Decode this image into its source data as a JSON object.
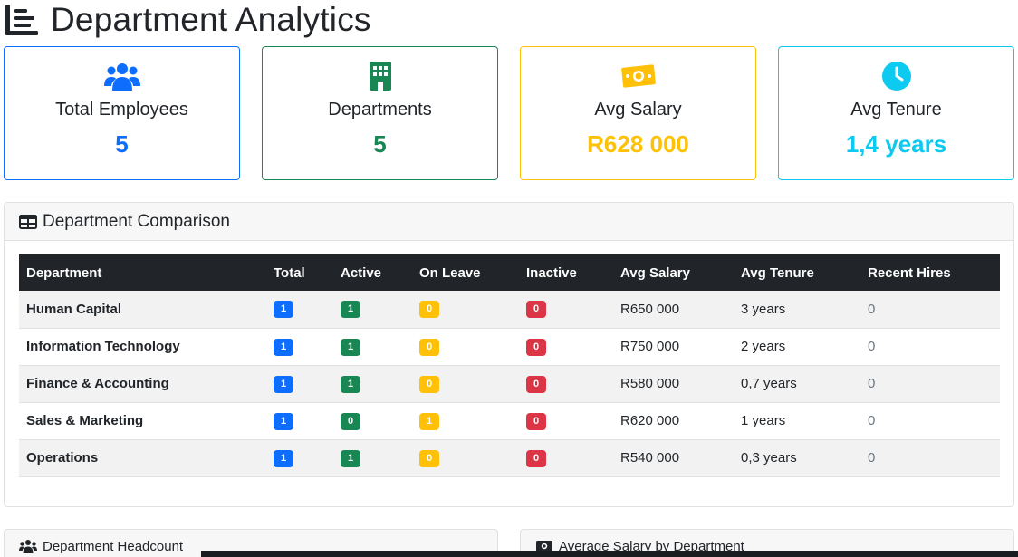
{
  "page": {
    "title": "Department Analytics"
  },
  "summary_cards": [
    {
      "icon": "users-icon",
      "label": "Total Employees",
      "value": "5",
      "color": "#0d6efd"
    },
    {
      "icon": "building-icon",
      "label": "Departments",
      "value": "5",
      "color": "#198754"
    },
    {
      "icon": "money-bill-icon",
      "label": "Avg Salary",
      "value": "R628 000",
      "color": "#ffc107"
    },
    {
      "icon": "clock-icon",
      "label": "Avg Tenure",
      "value": "1,4 years",
      "color": "#0dcaf0"
    }
  ],
  "comparison": {
    "title": "Department Comparison",
    "icon": "table-icon",
    "columns": [
      "Department",
      "Total",
      "Active",
      "On Leave",
      "Inactive",
      "Avg Salary",
      "Avg Tenure",
      "Recent Hires"
    ],
    "rows": [
      {
        "department": "Human Capital",
        "total": "1",
        "active": "1",
        "on_leave": "0",
        "inactive": "0",
        "avg_salary": "R650 000",
        "avg_tenure": "3 years",
        "recent_hires": "0"
      },
      {
        "department": "Information Technology",
        "total": "1",
        "active": "1",
        "on_leave": "0",
        "inactive": "0",
        "avg_salary": "R750 000",
        "avg_tenure": "2 years",
        "recent_hires": "0"
      },
      {
        "department": "Finance & Accounting",
        "total": "1",
        "active": "1",
        "on_leave": "0",
        "inactive": "0",
        "avg_salary": "R580 000",
        "avg_tenure": "0,7 years",
        "recent_hires": "0"
      },
      {
        "department": "Sales & Marketing",
        "total": "1",
        "active": "0",
        "on_leave": "1",
        "inactive": "0",
        "avg_salary": "R620 000",
        "avg_tenure": "1 years",
        "recent_hires": "0"
      },
      {
        "department": "Operations",
        "total": "1",
        "active": "1",
        "on_leave": "0",
        "inactive": "0",
        "avg_salary": "R540 000",
        "avg_tenure": "0,3 years",
        "recent_hires": "0"
      }
    ],
    "badge_colors": {
      "total": "#0d6efd",
      "active": "#198754",
      "on_leave": "#ffc107",
      "inactive": "#dc3545"
    }
  },
  "bottom_panels": [
    {
      "icon": "users-icon",
      "title": "Department Headcount"
    },
    {
      "icon": "money-bill-icon",
      "title": "Average Salary by Department"
    }
  ]
}
